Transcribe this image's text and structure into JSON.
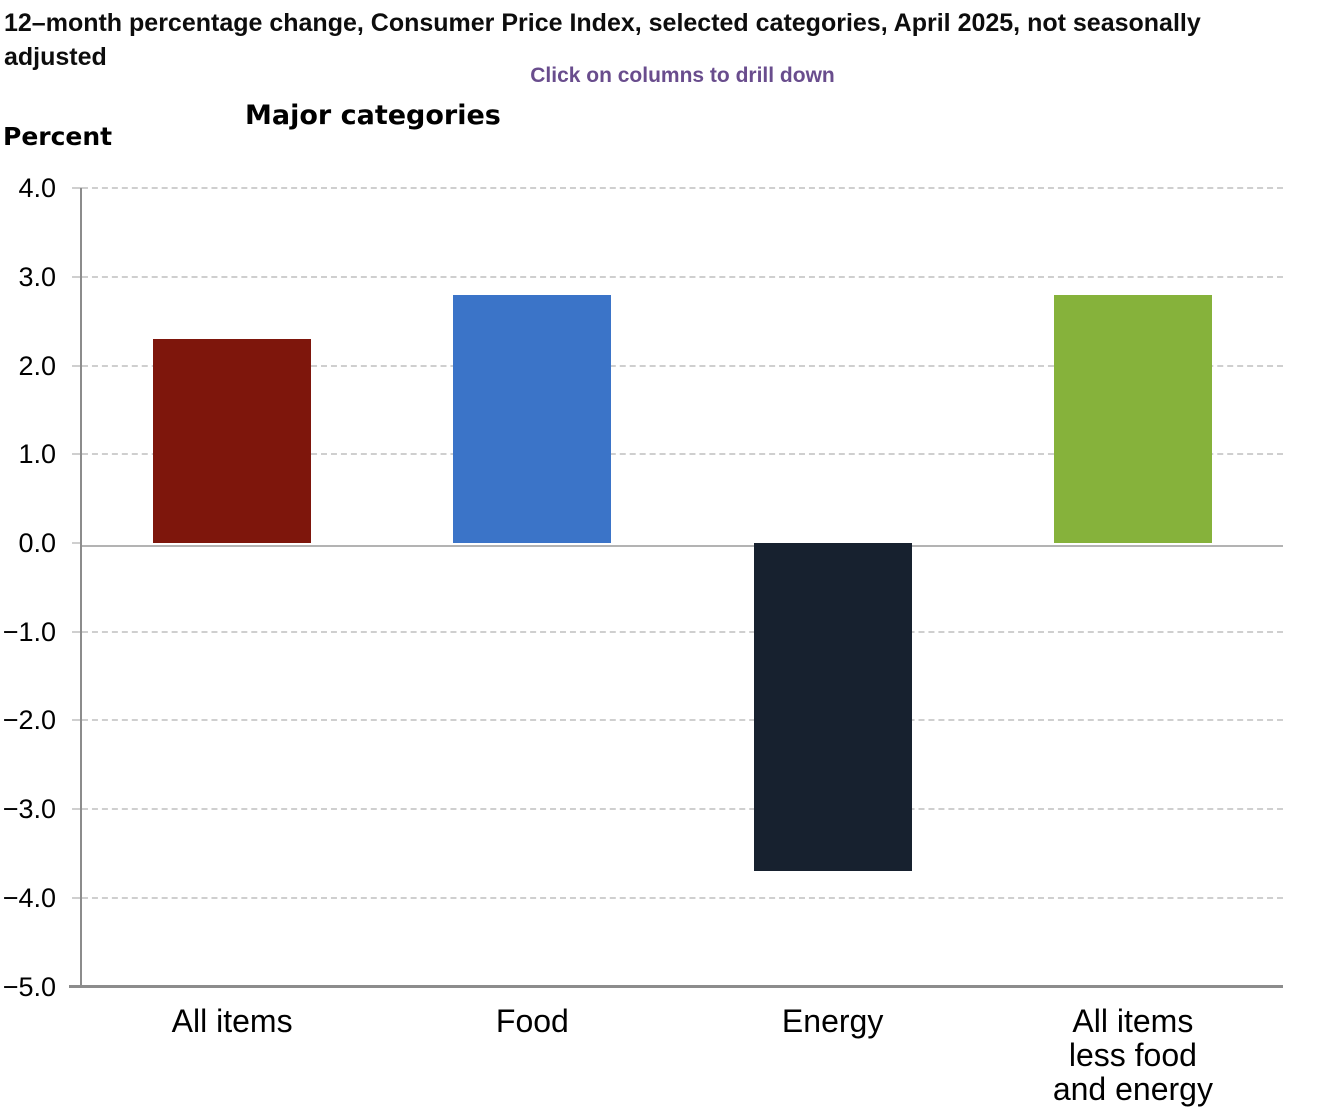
{
  "page": {
    "title": "12–month percentage change, Consumer Price Index, selected categories, April 2025, not seasonally adjusted",
    "drill_hint": "Click on columns to drill down",
    "axis_unit_label": "Percent"
  },
  "colors": {
    "drill_hint_text": "#694D8D",
    "axis_line": "#8C8C8C",
    "gridline_dashed": "#CFCFCF",
    "zero_line": "#B3B3B3",
    "title_text": "#0D0D0D"
  },
  "chart_data": {
    "type": "bar",
    "title": "Major categories",
    "categories": [
      "All items",
      "Food",
      "Energy",
      "All items less food and energy"
    ],
    "category_label_lines": [
      [
        "All items"
      ],
      [
        "Food"
      ],
      [
        "Energy"
      ],
      [
        "All items",
        "less food",
        "and energy"
      ]
    ],
    "category_slugs": [
      "all-items",
      "food",
      "energy",
      "all-items-less-food-and-energy"
    ],
    "values": [
      2.3,
      2.8,
      -3.7,
      2.8
    ],
    "bar_colors": [
      "#7E160C",
      "#3B74C8",
      "#17212F",
      "#86B23B"
    ],
    "xlabel": "",
    "ylabel": "Percent",
    "ylim": [
      -5.0,
      4.0
    ],
    "ytick_interval": 1.0,
    "yticks": [
      {
        "value": 4,
        "label": "4.0"
      },
      {
        "value": 3,
        "label": "3.0"
      },
      {
        "value": 2,
        "label": "2.0"
      },
      {
        "value": 1,
        "label": "1.0"
      },
      {
        "value": 0,
        "label": "0.0"
      },
      {
        "value": -1,
        "label": "−1.0"
      },
      {
        "value": -2,
        "label": "−2.0"
      },
      {
        "value": -3,
        "label": "−3.0"
      },
      {
        "value": -4,
        "label": "−4.0"
      },
      {
        "value": -5,
        "label": "−5.0"
      }
    ],
    "grid": "horizontal-dashed",
    "legend": "none",
    "zero_baseline": true
  }
}
